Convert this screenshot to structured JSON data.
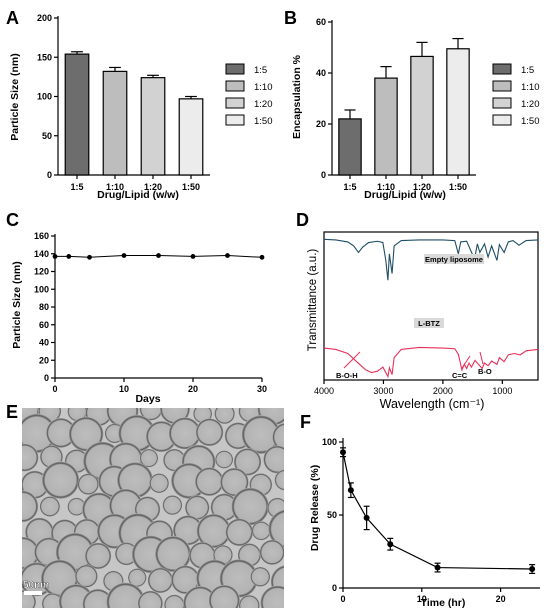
{
  "panels": {
    "A": "A",
    "B": "B",
    "C": "C",
    "D": "D",
    "E": "E",
    "F": "F"
  },
  "colors": {
    "bar_1_5": "#6d6d6d",
    "bar_1_10": "#bdbdbd",
    "bar_1_20": "#d2d2d2",
    "bar_1_50": "#ececec",
    "ftir_top": "#1f4e66",
    "ftir_bottom": "#e8305a"
  },
  "chart_data": [
    {
      "id": "A",
      "type": "bar",
      "categories": [
        "1:5",
        "1:10",
        "1:20",
        "1:50"
      ],
      "values": [
        154,
        132,
        124,
        97
      ],
      "errors": [
        3,
        5,
        3,
        3
      ],
      "xlabel": "Drug/Lipid (w/w)",
      "ylabel": "Particle Size (nm)",
      "ylim": [
        0,
        200
      ],
      "yticks": [
        0,
        50,
        100,
        150,
        200
      ],
      "legend": [
        "1:5",
        "1:10",
        "1:20",
        "1:50"
      ],
      "legend_position": "right"
    },
    {
      "id": "B",
      "type": "bar",
      "categories": [
        "1:5",
        "1:10",
        "1:20",
        "1:50"
      ],
      "values": [
        22,
        38,
        46.5,
        49.5
      ],
      "errors": [
        3.5,
        4.5,
        5.5,
        4
      ],
      "xlabel": "Drug/Lipid (w/w)",
      "ylabel": "Encapsulation %",
      "ylim": [
        0,
        60
      ],
      "yticks": [
        0,
        20,
        40,
        60
      ],
      "legend": [
        "1:5",
        "1:10",
        "1:20",
        "1:50"
      ],
      "legend_position": "right"
    },
    {
      "id": "C",
      "type": "line",
      "x": [
        0,
        2,
        5,
        10,
        15,
        20,
        25,
        30
      ],
      "y": [
        137,
        137,
        136,
        138,
        138,
        137,
        138,
        136
      ],
      "xlabel": "Days",
      "ylabel": "Particle Size (nm)",
      "xlim": [
        0,
        30
      ],
      "xticks": [
        0,
        10,
        20,
        30
      ],
      "ylim": [
        0,
        160
      ],
      "yticks": [
        0,
        20,
        40,
        60,
        80,
        100,
        120,
        140,
        160
      ]
    },
    {
      "id": "D",
      "type": "line",
      "xlabel": "Wavelength (cm⁻¹)",
      "ylabel": "Transmittance (a.u.)",
      "xlim": [
        4000,
        400
      ],
      "xticks": [
        4000,
        3000,
        2000,
        1000
      ],
      "series": [
        {
          "name": "Empty liposome",
          "points": [
            [
              4000,
              0.92
            ],
            [
              3800,
              0.91
            ],
            [
              3600,
              0.88
            ],
            [
              3500,
              0.82
            ],
            [
              3420,
              0.72
            ],
            [
              3350,
              0.8
            ],
            [
              3250,
              0.87
            ],
            [
              3100,
              0.89
            ],
            [
              3010,
              0.87
            ],
            [
              2960,
              0.6
            ],
            [
              2925,
              0.3
            ],
            [
              2900,
              0.7
            ],
            [
              2855,
              0.4
            ],
            [
              2820,
              0.82
            ],
            [
              2700,
              0.9
            ],
            [
              2400,
              0.91
            ],
            [
              2000,
              0.91
            ],
            [
              1800,
              0.9
            ],
            [
              1740,
              0.7
            ],
            [
              1700,
              0.88
            ],
            [
              1600,
              0.89
            ],
            [
              1468,
              0.62
            ],
            [
              1420,
              0.85
            ],
            [
              1378,
              0.72
            ],
            [
              1300,
              0.85
            ],
            [
              1240,
              0.65
            ],
            [
              1180,
              0.82
            ],
            [
              1090,
              0.6
            ],
            [
              1050,
              0.84
            ],
            [
              970,
              0.72
            ],
            [
              900,
              0.88
            ],
            [
              820,
              0.9
            ],
            [
              720,
              0.83
            ],
            [
              600,
              0.9
            ],
            [
              400,
              0.91
            ]
          ]
        },
        {
          "name": "L-BTZ",
          "points": [
            [
              4000,
              0.44
            ],
            [
              3800,
              0.42
            ],
            [
              3600,
              0.36
            ],
            [
              3450,
              0.24
            ],
            [
              3300,
              0.12
            ],
            [
              3200,
              0.08
            ],
            [
              3100,
              0.1
            ],
            [
              3010,
              0.16
            ],
            [
              2960,
              0.08
            ],
            [
              2925,
              0.02
            ],
            [
              2900,
              0.15
            ],
            [
              2855,
              0.05
            ],
            [
              2820,
              0.3
            ],
            [
              2700,
              0.42
            ],
            [
              2400,
              0.45
            ],
            [
              2000,
              0.44
            ],
            [
              1800,
              0.43
            ],
            [
              1740,
              0.35
            ],
            [
              1680,
              0.12
            ],
            [
              1640,
              0.2
            ],
            [
              1600,
              0.14
            ],
            [
              1560,
              0.22
            ],
            [
              1520,
              0.16
            ],
            [
              1460,
              0.26
            ],
            [
              1400,
              0.2
            ],
            [
              1340,
              0.14
            ],
            [
              1300,
              0.22
            ],
            [
              1240,
              0.18
            ],
            [
              1180,
              0.25
            ],
            [
              1090,
              0.2
            ],
            [
              1050,
              0.3
            ],
            [
              970,
              0.24
            ],
            [
              900,
              0.34
            ],
            [
              800,
              0.36
            ],
            [
              700,
              0.34
            ],
            [
              600,
              0.4
            ],
            [
              400,
              0.42
            ]
          ]
        }
      ],
      "annotations": [
        "B-O-H",
        "C=C",
        "B-O"
      ]
    },
    {
      "id": "E",
      "type": "image",
      "scale_bar": "50nm"
    },
    {
      "id": "F",
      "type": "line",
      "x": [
        0,
        1,
        3,
        6,
        12,
        24
      ],
      "y": [
        93,
        67,
        48,
        30,
        14,
        13
      ],
      "errors": [
        3,
        5,
        8,
        4,
        3,
        3
      ],
      "xlabel": "Time (hr)",
      "ylabel": "Drug Release (%)",
      "xlim": [
        0,
        25
      ],
      "xticks": [
        0,
        10,
        20
      ],
      "ylim": [
        0,
        100
      ],
      "yticks": [
        0,
        50,
        100
      ]
    }
  ]
}
